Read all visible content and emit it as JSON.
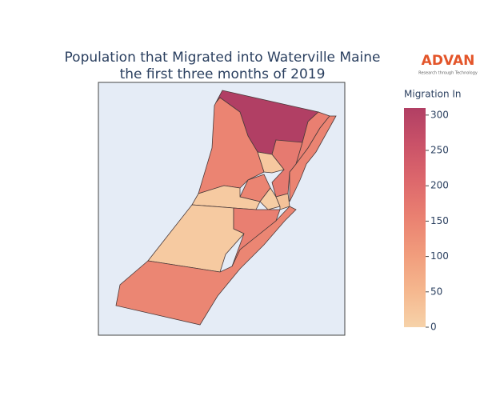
{
  "chart_data": {
    "type": "choropleth",
    "title": [
      "Population that Migrated into Waterville Maine",
      "the first three months of 2019"
    ],
    "colorbar_title": "Migration In",
    "logo": {
      "name": "ADVAN",
      "tagline": "Research through Technology"
    },
    "values": [
      310,
      150,
      160,
      150,
      170,
      20,
      150,
      15,
      15,
      145,
      10,
      30,
      160
    ],
    "zlim": [
      0,
      310
    ],
    "zticks": [
      0,
      50,
      100,
      150,
      200,
      250,
      300
    ],
    "colorscale": [
      "#f6d2a9",
      "#f5b78e",
      "#f19c7c",
      "#ea8171",
      "#dd686c",
      "#ca5268",
      "#b13f64"
    ]
  }
}
